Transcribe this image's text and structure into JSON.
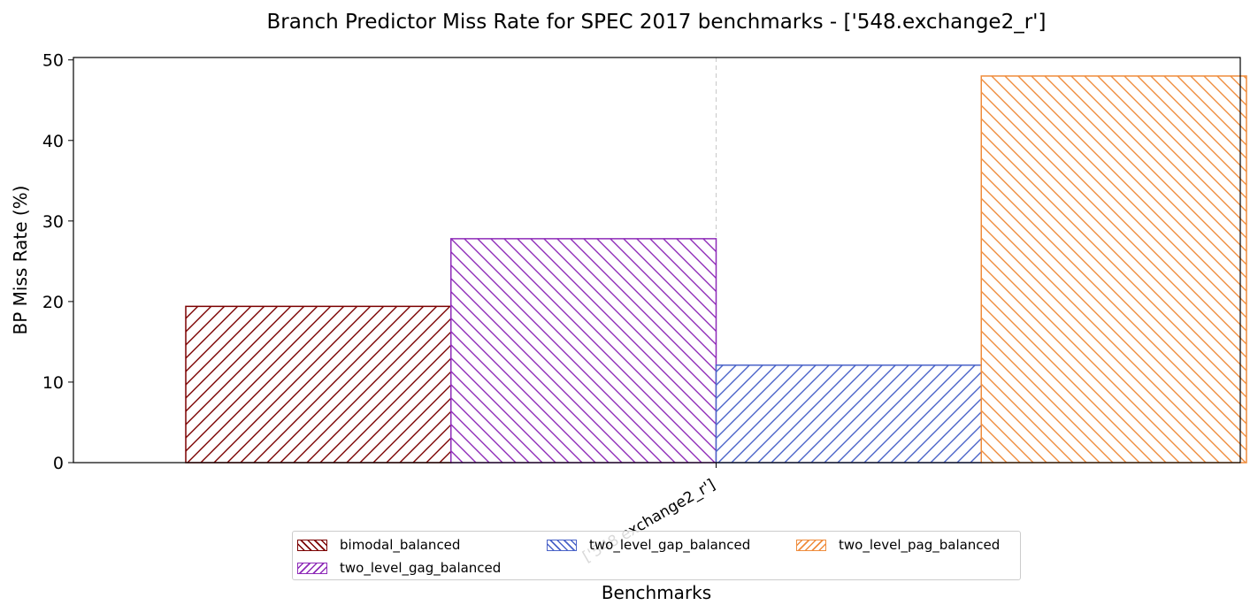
{
  "chart_data": {
    "type": "bar",
    "title": "Branch Predictor Miss Rate for SPEC 2017 benchmarks - ['548.exchange2_r']",
    "xlabel": "Benchmarks",
    "ylabel": "BP Miss Rate (%)",
    "categories": [
      "['548.exchange2_r']"
    ],
    "ylim": [
      0,
      50.3
    ],
    "yticks": [
      0,
      10,
      20,
      30,
      40,
      50
    ],
    "grid": "x-dashed",
    "legend_position": "bottom-center",
    "series": [
      {
        "name": "bimodal_balanced",
        "values": [
          19.4
        ],
        "color": "#7b0000",
        "hatch": "forward"
      },
      {
        "name": "two_level_gag_balanced",
        "values": [
          27.8
        ],
        "color": "#8e2bb8",
        "hatch": "backward"
      },
      {
        "name": "two_level_gap_balanced",
        "values": [
          12.1
        ],
        "color": "#4a63c8",
        "hatch": "forward"
      },
      {
        "name": "two_level_pag_balanced",
        "values": [
          48.0
        ],
        "color": "#ef8c3c",
        "hatch": "backward"
      }
    ]
  }
}
